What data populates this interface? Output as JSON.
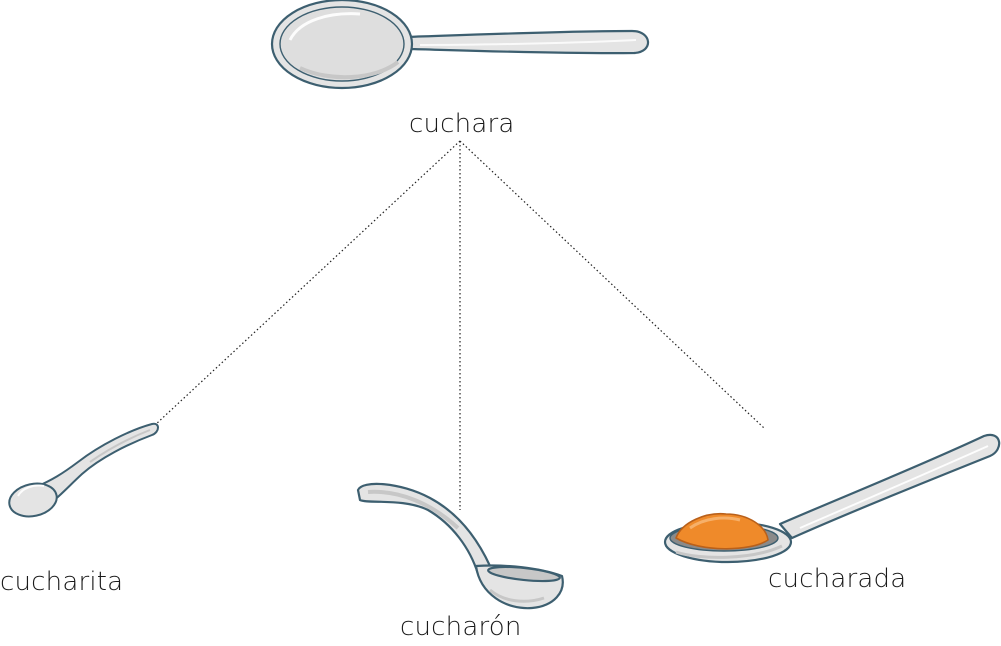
{
  "root": {
    "label": "cuchara",
    "icon": "spoon-icon"
  },
  "children": [
    {
      "label": "cucharita",
      "icon": "teaspoon-icon"
    },
    {
      "label": "cucharón",
      "icon": "ladle-icon"
    },
    {
      "label": "cucharada",
      "icon": "spoonful-icon"
    }
  ],
  "colors": {
    "outline": "#3d5f70",
    "metal": "#e4e4e4",
    "metal_shadow": "#c7c7c7",
    "filling": "#ef8a2a",
    "filling_outline": "#b9601a",
    "connector": "#222222",
    "text": "#1a1a1a"
  }
}
